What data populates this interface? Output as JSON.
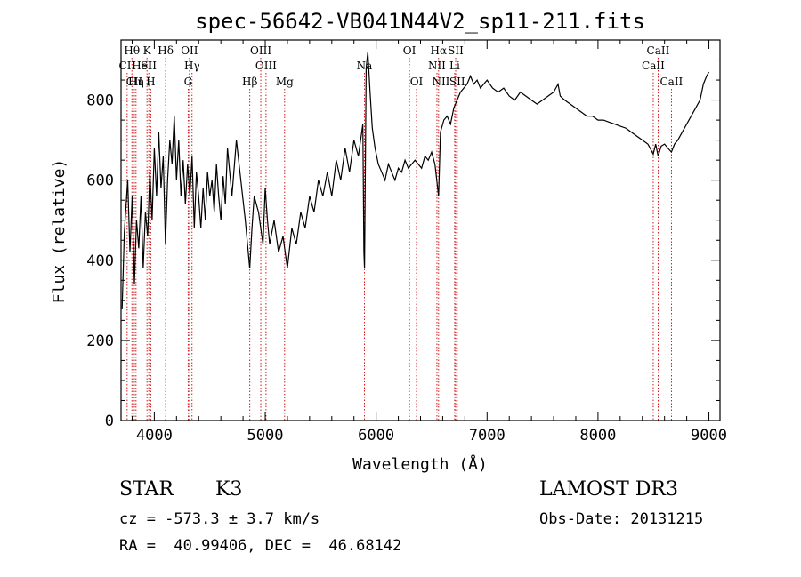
{
  "chart_data": {
    "type": "line",
    "title": "spec-56642-VB041N44V2_sp11-211.fits",
    "xlabel": "Wavelength (Å)",
    "ylabel": "Flux (relative)",
    "xlim": [
      3700,
      9100
    ],
    "ylim": [
      0,
      950
    ],
    "x_ticks": [
      4000,
      5000,
      6000,
      7000,
      8000,
      9000
    ],
    "y_ticks": [
      0,
      200,
      400,
      600,
      800
    ],
    "grid": false,
    "line_color": "#000000",
    "marker_color": "#cc0000",
    "series": [
      {
        "values": [
          [
            3710,
            280
          ],
          [
            3730,
            470
          ],
          [
            3760,
            600
          ],
          [
            3780,
            420
          ],
          [
            3800,
            560
          ],
          [
            3820,
            340
          ],
          [
            3840,
            500
          ],
          [
            3860,
            430
          ],
          [
            3880,
            560
          ],
          [
            3900,
            380
          ],
          [
            3920,
            520
          ],
          [
            3940,
            460
          ],
          [
            3960,
            620
          ],
          [
            3980,
            500
          ],
          [
            4000,
            680
          ],
          [
            4020,
            560
          ],
          [
            4040,
            720
          ],
          [
            4060,
            580
          ],
          [
            4080,
            660
          ],
          [
            4100,
            440
          ],
          [
            4120,
            600
          ],
          [
            4140,
            700
          ],
          [
            4160,
            640
          ],
          [
            4180,
            760
          ],
          [
            4200,
            600
          ],
          [
            4220,
            700
          ],
          [
            4240,
            560
          ],
          [
            4260,
            650
          ],
          [
            4280,
            540
          ],
          [
            4300,
            640
          ],
          [
            4320,
            560
          ],
          [
            4340,
            660
          ],
          [
            4360,
            480
          ],
          [
            4380,
            620
          ],
          [
            4400,
            560
          ],
          [
            4420,
            480
          ],
          [
            4440,
            580
          ],
          [
            4460,
            500
          ],
          [
            4480,
            620
          ],
          [
            4500,
            560
          ],
          [
            4520,
            600
          ],
          [
            4540,
            520
          ],
          [
            4560,
            640
          ],
          [
            4580,
            560
          ],
          [
            4600,
            500
          ],
          [
            4620,
            610
          ],
          [
            4640,
            540
          ],
          [
            4660,
            680
          ],
          [
            4700,
            560
          ],
          [
            4740,
            700
          ],
          [
            4780,
            600
          ],
          [
            4820,
            500
          ],
          [
            4860,
            380
          ],
          [
            4880,
            480
          ],
          [
            4900,
            560
          ],
          [
            4940,
            520
          ],
          [
            4980,
            440
          ],
          [
            5000,
            580
          ],
          [
            5020,
            500
          ],
          [
            5040,
            440
          ],
          [
            5080,
            500
          ],
          [
            5120,
            420
          ],
          [
            5160,
            460
          ],
          [
            5200,
            380
          ],
          [
            5240,
            480
          ],
          [
            5280,
            440
          ],
          [
            5320,
            520
          ],
          [
            5360,
            480
          ],
          [
            5400,
            560
          ],
          [
            5440,
            520
          ],
          [
            5480,
            600
          ],
          [
            5520,
            560
          ],
          [
            5560,
            620
          ],
          [
            5600,
            560
          ],
          [
            5640,
            650
          ],
          [
            5680,
            600
          ],
          [
            5720,
            680
          ],
          [
            5760,
            620
          ],
          [
            5800,
            700
          ],
          [
            5840,
            660
          ],
          [
            5880,
            740
          ],
          [
            5890,
            420
          ],
          [
            5895,
            380
          ],
          [
            5910,
            880
          ],
          [
            5925,
            920
          ],
          [
            5945,
            820
          ],
          [
            5965,
            730
          ],
          [
            5990,
            680
          ],
          [
            6020,
            640
          ],
          [
            6050,
            620
          ],
          [
            6080,
            600
          ],
          [
            6110,
            640
          ],
          [
            6140,
            620
          ],
          [
            6170,
            600
          ],
          [
            6200,
            630
          ],
          [
            6230,
            620
          ],
          [
            6260,
            650
          ],
          [
            6290,
            630
          ],
          [
            6320,
            640
          ],
          [
            6350,
            650
          ],
          [
            6380,
            640
          ],
          [
            6410,
            630
          ],
          [
            6440,
            660
          ],
          [
            6470,
            650
          ],
          [
            6500,
            670
          ],
          [
            6530,
            640
          ],
          [
            6563,
            560
          ],
          [
            6580,
            720
          ],
          [
            6610,
            750
          ],
          [
            6640,
            760
          ],
          [
            6670,
            740
          ],
          [
            6700,
            780
          ],
          [
            6730,
            800
          ],
          [
            6760,
            820
          ],
          [
            6790,
            830
          ],
          [
            6820,
            840
          ],
          [
            6850,
            860
          ],
          [
            6880,
            840
          ],
          [
            6910,
            850
          ],
          [
            6940,
            830
          ],
          [
            6970,
            840
          ],
          [
            7000,
            850
          ],
          [
            7050,
            830
          ],
          [
            7100,
            820
          ],
          [
            7150,
            830
          ],
          [
            7200,
            810
          ],
          [
            7250,
            800
          ],
          [
            7300,
            820
          ],
          [
            7350,
            810
          ],
          [
            7400,
            800
          ],
          [
            7450,
            790
          ],
          [
            7500,
            800
          ],
          [
            7550,
            810
          ],
          [
            7600,
            820
          ],
          [
            7640,
            840
          ],
          [
            7660,
            810
          ],
          [
            7700,
            800
          ],
          [
            7750,
            790
          ],
          [
            7800,
            780
          ],
          [
            7850,
            770
          ],
          [
            7900,
            760
          ],
          [
            7950,
            760
          ],
          [
            8000,
            750
          ],
          [
            8050,
            750
          ],
          [
            8100,
            745
          ],
          [
            8150,
            740
          ],
          [
            8200,
            735
          ],
          [
            8250,
            730
          ],
          [
            8300,
            720
          ],
          [
            8350,
            710
          ],
          [
            8400,
            700
          ],
          [
            8450,
            690
          ],
          [
            8498,
            665
          ],
          [
            8520,
            690
          ],
          [
            8542,
            660
          ],
          [
            8570,
            685
          ],
          [
            8600,
            690
          ],
          [
            8630,
            680
          ],
          [
            8662,
            670
          ],
          [
            8690,
            690
          ],
          [
            8720,
            700
          ],
          [
            8760,
            720
          ],
          [
            8800,
            740
          ],
          [
            8840,
            760
          ],
          [
            8880,
            780
          ],
          [
            8920,
            800
          ],
          [
            8950,
            840
          ],
          [
            8980,
            860
          ],
          [
            9000,
            870
          ]
        ]
      }
    ],
    "line_markers": [
      {
        "lines": [
          {
            "name": "Hθ",
            "wavelength": 3798
          }
        ],
        "row": 1
      },
      {
        "lines": [
          {
            "name": "CII",
            "wavelength": 3755
          }
        ],
        "row": 2
      },
      {
        "lines": [
          {
            "name": "CII",
            "wavelength": 3820
          }
        ],
        "row": 3
      },
      {
        "lines": [
          {
            "name": "HeI",
            "wavelength": 3888
          }
        ],
        "row": 2
      },
      {
        "lines": [
          {
            "name": "Hη",
            "wavelength": 3835
          }
        ],
        "row": 3
      },
      {
        "lines": [
          {
            "name": "K",
            "wavelength": 3934
          }
        ],
        "row": 1
      },
      {
        "lines": [
          {
            "name": "SII",
            "wavelength": 3950
          }
        ],
        "row": 2
      },
      {
        "lines": [
          {
            "name": "H",
            "wavelength": 3968
          }
        ],
        "row": 3
      },
      {
        "lines": [
          {
            "name": "Hδ",
            "wavelength": 4102
          }
        ],
        "row": 1
      },
      {
        "lines": [
          {
            "name": "OII",
            "wavelength": 4317
          }
        ],
        "row": 1
      },
      {
        "lines": [
          {
            "name": "Hγ",
            "wavelength": 4340
          }
        ],
        "row": 2
      },
      {
        "lines": [
          {
            "name": "G",
            "wavelength": 4305
          }
        ],
        "row": 3
      },
      {
        "lines": [
          {
            "name": "Hβ",
            "wavelength": 4861
          }
        ],
        "row": 3
      },
      {
        "lines": [
          {
            "name": "OIII",
            "wavelength": 4960
          }
        ],
        "row": 1
      },
      {
        "lines": [
          {
            "name": "OIII",
            "wavelength": 5007
          }
        ],
        "row": 2
      },
      {
        "lines": [
          {
            "name": "Mg",
            "wavelength": 5175
          }
        ],
        "row": 3
      },
      {
        "lines": [
          {
            "name": "Na",
            "wavelength": 5894
          }
        ],
        "row": 2
      },
      {
        "lines": [
          {
            "name": "OI",
            "wavelength": 6300
          }
        ],
        "row": 1
      },
      {
        "lines": [
          {
            "name": "OI",
            "wavelength": 6364
          }
        ],
        "row": 3
      },
      {
        "lines": [
          {
            "name": "Hα",
            "wavelength": 6563
          }
        ],
        "row": 1
      },
      {
        "lines": [
          {
            "name": "NII",
            "wavelength": 6548
          }
        ],
        "row": 2
      },
      {
        "lines": [
          {
            "name": "NII",
            "wavelength": 6584
          }
        ],
        "row": 3
      },
      {
        "lines": [
          {
            "name": "SII",
            "wavelength": 6717
          }
        ],
        "row": 1
      },
      {
        "lines": [
          {
            "name": "Li",
            "wavelength": 6708
          }
        ],
        "row": 2
      },
      {
        "lines": [
          {
            "name": "SII",
            "wavelength": 6731
          }
        ],
        "row": 3
      },
      {
        "lines": [
          {
            "name": "CaII",
            "wavelength": 8542
          }
        ],
        "row": 1
      },
      {
        "lines": [
          {
            "name": "CaII",
            "wavelength": 8498
          }
        ],
        "row": 2
      },
      {
        "lines": [
          {
            "name": "CaII",
            "wavelength": 8662
          }
        ],
        "row": 3
      }
    ]
  },
  "footer": {
    "class_label": "STAR",
    "subclass": "K3",
    "redshift": "cz = -573.3 ± 3.7 km/s",
    "coords": "RA =  40.99406, DEC =  46.68142",
    "survey": "LAMOST DR3",
    "obs_date": "Obs-Date: 20131215"
  }
}
